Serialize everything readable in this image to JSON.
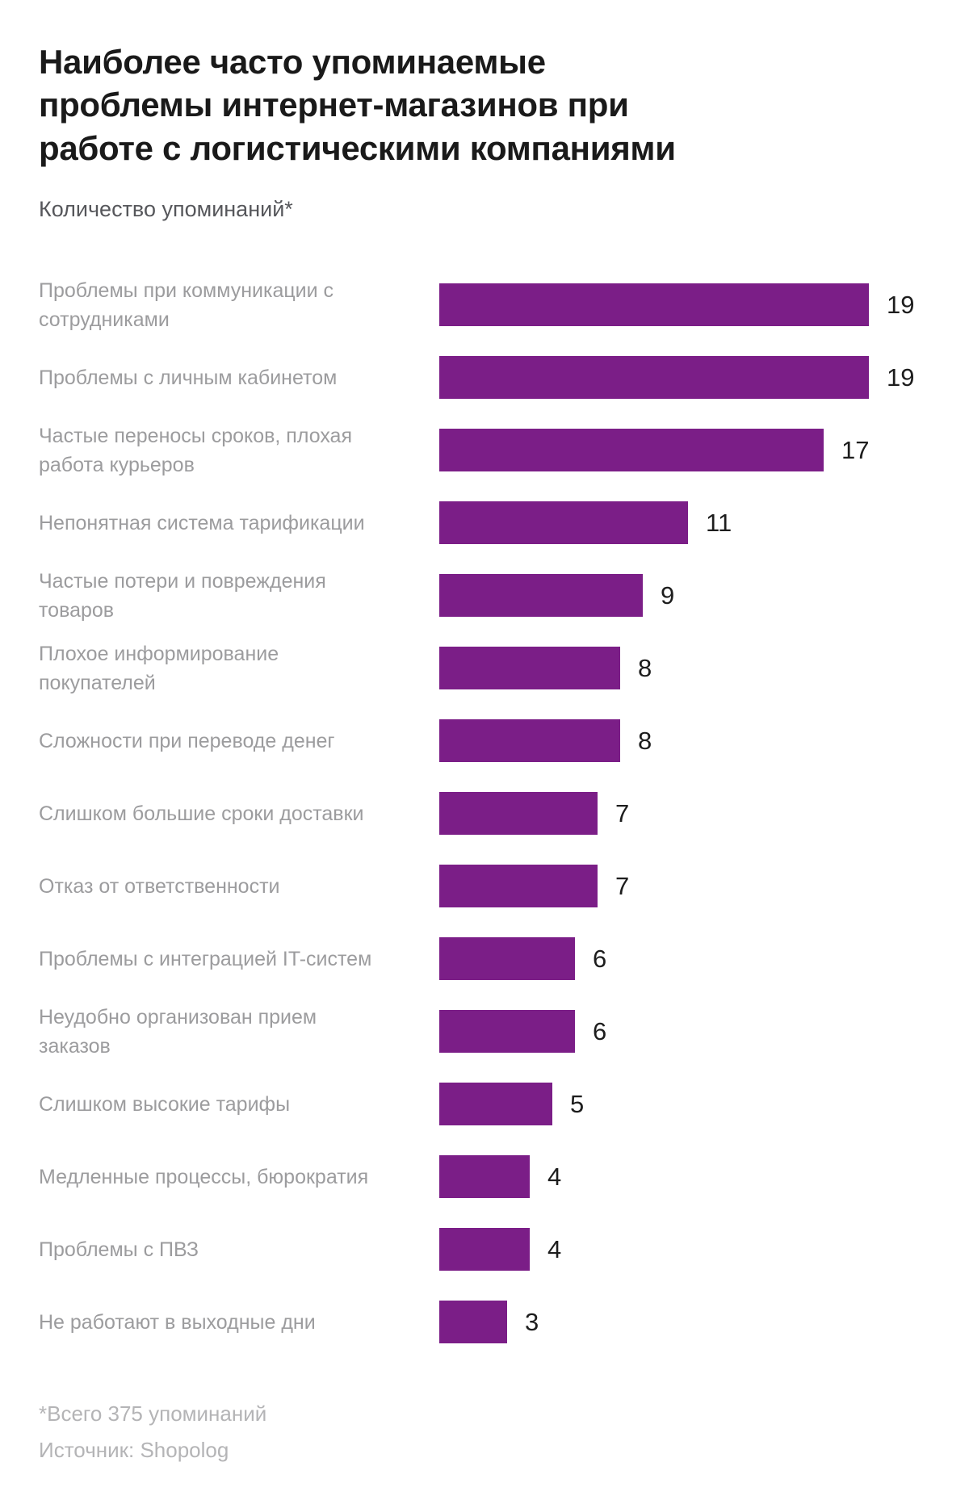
{
  "chart_data": {
    "type": "bar",
    "orientation": "horizontal",
    "title": "Наиболее часто упоминаемые проблемы интернет-магазинов при работе с логистическими компаниями",
    "subtitle": "Количество упоминаний*",
    "categories": [
      "Проблемы при коммуникации с сотрудниками",
      "Проблемы с личным кабинетом",
      "Частые переносы сроков, плохая работа курьеров",
      "Непонятная система тарификации",
      "Частые потери и повреждения товаров",
      "Плохое информирование покупателей",
      "Сложности при переводе денег",
      "Слишком большие сроки доставки",
      "Отказ от ответственности",
      "Проблемы с интеграцией IT-систем",
      "Неудобно организован прием заказов",
      "Слишком высокие тарифы",
      "Медленные процессы, бюрократия",
      "Проблемы с ПВЗ",
      "Не работают в выходные дни"
    ],
    "values": [
      19,
      19,
      17,
      11,
      9,
      8,
      8,
      7,
      7,
      6,
      6,
      5,
      4,
      4,
      3
    ],
    "xlim": [
      0,
      19
    ],
    "grid": false,
    "legend": false,
    "value_labels_position": "right-of-bar",
    "bar_color": "#7b1e87",
    "category_label_color": "#9c9c9e",
    "value_label_color": "#1d1d1d",
    "footnote": "*Всего 375 упоминаний",
    "source": "Источник: Shopolog"
  }
}
